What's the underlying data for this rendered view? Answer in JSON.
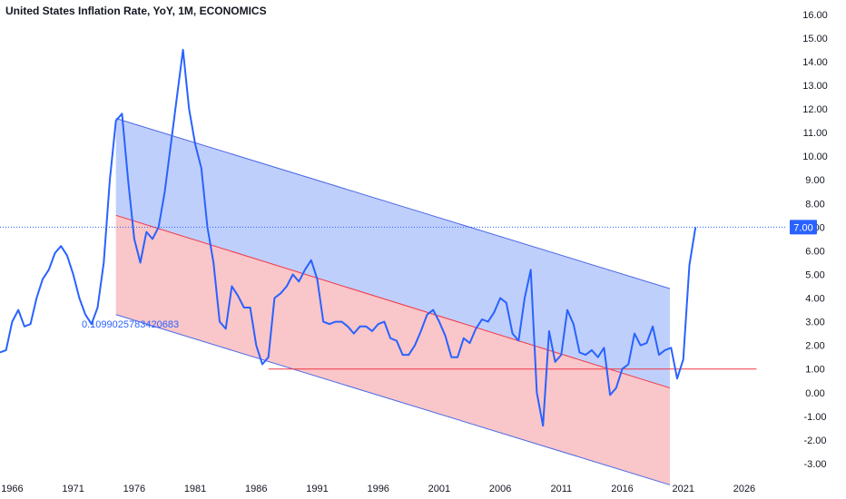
{
  "chart_data": {
    "type": "line",
    "title": "United States Inflation Rate, YoY, 1M, ECONOMICS",
    "xlabel": "",
    "ylabel": "",
    "x_ticks": [
      "1966",
      "1971",
      "1976",
      "1981",
      "1986",
      "1991",
      "1996",
      "2001",
      "2006",
      "2011",
      "2016",
      "2021",
      "2026"
    ],
    "y_ticks": [
      "-3.00",
      "-2.00",
      "-1.00",
      "0.00",
      "1.00",
      "2.00",
      "3.00",
      "4.00",
      "5.00",
      "6.00",
      "7.00",
      "8.00",
      "9.00",
      "10.00",
      "11.00",
      "12.00",
      "13.00",
      "14.00",
      "15.00",
      "16.00"
    ],
    "xlim": [
      1965.0,
      2029.5
    ],
    "ylim": [
      -3.5,
      16.3
    ],
    "grid": false,
    "last_value_label": "7.00",
    "last_value": 7.0,
    "annotation": "0.1099025783420683",
    "colors": {
      "line": "#2962ff",
      "channel_upper_fill": "#bcccfc",
      "channel_lower_fill": "#f9c3c6",
      "channel_edge": "#4a67e8",
      "channel_mid": "#f23645",
      "horizontal_ray": "#f23645",
      "last_value_badge": "#2962ff",
      "last_value_dotted": "#2962ff"
    },
    "channel": {
      "x_start": 1974.5,
      "x_end": 2019.9,
      "upper": [
        11.6,
        4.4
      ],
      "mid": [
        7.5,
        0.2
      ],
      "lower": [
        3.3,
        -3.9
      ]
    },
    "horizontal_ray": {
      "x_start": 1987.0,
      "x_end": 2027.0,
      "y": 1.0
    },
    "series": [
      {
        "x": [
          1965.0,
          1965.5,
          1966.0,
          1966.5,
          1967.0,
          1967.5,
          1968.0,
          1968.5,
          1969.0,
          1969.5,
          1970.0,
          1970.5,
          1971.0,
          1971.5,
          1972.0,
          1972.5,
          1973.0,
          1973.5,
          1974.0,
          1974.5,
          1975.0,
          1975.5,
          1976.0,
          1976.5,
          1977.0,
          1977.5,
          1978.0,
          1978.5,
          1979.0,
          1979.5,
          1980.0,
          1980.5,
          1981.0,
          1981.5,
          1982.0,
          1982.5,
          1983.0,
          1983.5,
          1984.0,
          1984.5,
          1985.0,
          1985.5,
          1986.0,
          1986.5,
          1987.0,
          1987.5,
          1988.0,
          1988.5,
          1989.0,
          1989.5,
          1990.0,
          1990.5,
          1991.0,
          1991.5,
          1992.0,
          1992.5,
          1993.0,
          1993.5,
          1994.0,
          1994.5,
          1995.0,
          1995.5,
          1996.0,
          1996.5,
          1997.0,
          1997.5,
          1998.0,
          1998.5,
          1999.0,
          1999.5,
          2000.0,
          2000.5,
          2001.0,
          2001.5,
          2002.0,
          2002.5,
          2003.0,
          2003.5,
          2004.0,
          2004.5,
          2005.0,
          2005.5,
          2006.0,
          2006.5,
          2007.0,
          2007.5,
          2008.0,
          2008.5,
          2009.0,
          2009.5,
          2010.0,
          2010.5,
          2011.0,
          2011.5,
          2012.0,
          2012.5,
          2013.0,
          2013.5,
          2014.0,
          2014.5,
          2015.0,
          2015.5,
          2016.0,
          2016.5,
          2017.0,
          2017.5,
          2018.0,
          2018.5,
          2019.0,
          2019.5,
          2020.0,
          2020.5,
          2021.0,
          2021.5,
          2022.0
        ],
        "values": [
          1.7,
          1.8,
          3.0,
          3.5,
          2.8,
          2.9,
          4.0,
          4.8,
          5.2,
          5.9,
          6.2,
          5.8,
          5.0,
          4.0,
          3.3,
          2.9,
          3.6,
          5.5,
          9.0,
          11.5,
          11.8,
          9.0,
          6.5,
          5.5,
          6.8,
          6.5,
          7.0,
          8.5,
          10.5,
          12.5,
          14.5,
          12.0,
          10.5,
          9.5,
          7.0,
          5.5,
          3.0,
          2.7,
          4.5,
          4.1,
          3.6,
          3.6,
          2.0,
          1.2,
          1.5,
          4.0,
          4.2,
          4.5,
          5.0,
          4.7,
          5.2,
          5.6,
          4.8,
          3.0,
          2.9,
          3.0,
          3.0,
          2.8,
          2.5,
          2.8,
          2.8,
          2.6,
          2.9,
          3.0,
          2.3,
          2.2,
          1.6,
          1.6,
          2.0,
          2.6,
          3.3,
          3.5,
          3.0,
          2.4,
          1.5,
          1.5,
          2.3,
          2.1,
          2.7,
          3.1,
          3.0,
          3.4,
          4.0,
          3.8,
          2.5,
          2.2,
          4.0,
          5.2,
          0.0,
          -1.4,
          2.6,
          1.3,
          1.6,
          3.5,
          2.9,
          1.7,
          1.6,
          1.8,
          1.5,
          1.9,
          -0.1,
          0.2,
          1.0,
          1.2,
          2.5,
          2.0,
          2.1,
          2.8,
          1.6,
          1.8,
          1.9,
          0.6,
          1.4,
          5.4,
          7.0
        ]
      }
    ]
  }
}
